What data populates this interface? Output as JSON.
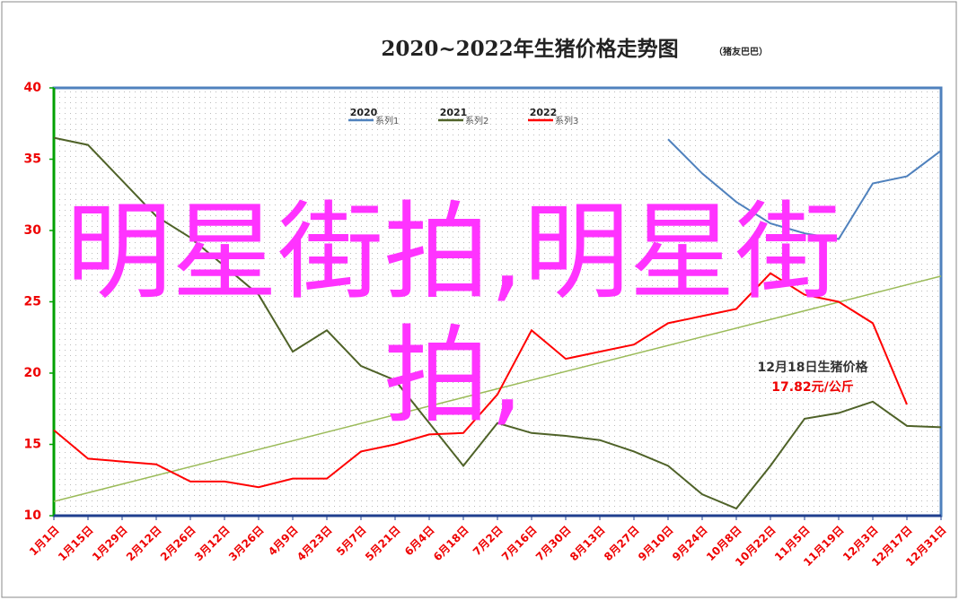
{
  "chart_data": {
    "type": "line",
    "title": "2020~2022年生猪价格走势图",
    "subtitle": "（猪友巴巴）",
    "categories": [
      "1月1日",
      "1月15日",
      "1月29日",
      "2月12日",
      "2月26日",
      "3月12日",
      "3月26日",
      "4月9日",
      "4月23日",
      "5月7日",
      "5月21日",
      "6月4日",
      "6月18日",
      "7月2日",
      "7月16日",
      "7月30日",
      "8月13日",
      "8月27日",
      "9月10日",
      "9月24日",
      "10月8日",
      "10月22日",
      "11月5日",
      "11月19日",
      "12月3日",
      "12月17日",
      "12月31日"
    ],
    "series": [
      {
        "year": "2020",
        "name": "系列1",
        "color": "#4f81bd",
        "values": [
          null,
          null,
          null,
          null,
          null,
          null,
          null,
          null,
          null,
          null,
          null,
          null,
          null,
          null,
          null,
          null,
          null,
          null,
          36.4,
          34.0,
          32.0,
          30.5,
          29.8,
          29.4,
          33.3,
          33.8,
          35.6
        ]
      },
      {
        "year": "2021",
        "name": "系列2",
        "color": "#4f6228",
        "values": [
          36.5,
          36.0,
          33.5,
          31.0,
          29.5,
          27.5,
          25.5,
          21.5,
          23.0,
          20.5,
          19.5,
          16.5,
          13.5,
          16.5,
          15.8,
          15.6,
          15.3,
          14.5,
          13.5,
          11.5,
          10.5,
          13.5,
          16.8,
          17.2,
          18.0,
          16.3,
          16.2
        ]
      },
      {
        "year": "2022",
        "name": "系列3",
        "color": "#ff0000",
        "values": [
          16.0,
          14.0,
          13.8,
          13.6,
          12.4,
          12.4,
          12.0,
          12.6,
          12.6,
          14.5,
          15.0,
          15.7,
          15.8,
          18.5,
          23.0,
          21.0,
          21.5,
          22.0,
          23.5,
          24.0,
          24.5,
          27.0,
          25.5,
          25.0,
          23.5,
          17.8,
          null
        ]
      }
    ],
    "trend": {
      "color": "#9bbb59",
      "values": [
        11,
        26.8
      ]
    },
    "ylim": [
      10,
      40
    ],
    "yticks": [
      10,
      15,
      20,
      25,
      30,
      35,
      40
    ],
    "annotation": {
      "title": "12月18日生猪价格",
      "value": "17.82元/公斤"
    },
    "watermark": "明星街拍,明星街拍,"
  }
}
